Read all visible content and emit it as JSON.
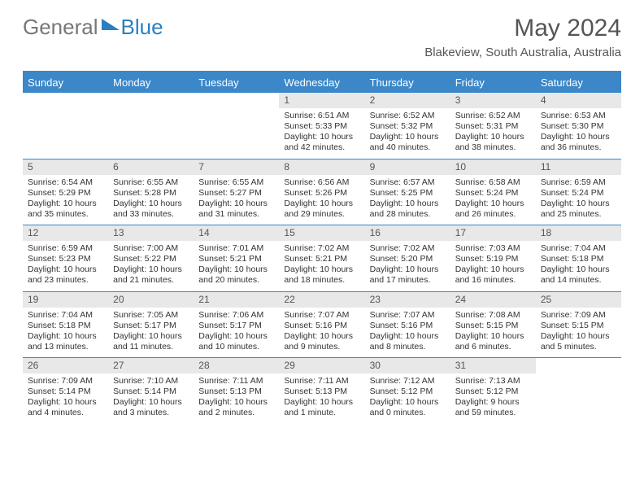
{
  "logo": {
    "word1": "General",
    "word2": "Blue"
  },
  "title": {
    "month": "May 2024",
    "location": "Blakeview, South Australia, Australia"
  },
  "colors": {
    "header_bg": "#3b87c8",
    "header_text": "#ffffff",
    "daynum_bg": "#e8e8e8",
    "body_text": "#333333",
    "title_text": "#555555"
  },
  "day_names": [
    "Sunday",
    "Monday",
    "Tuesday",
    "Wednesday",
    "Thursday",
    "Friday",
    "Saturday"
  ],
  "weeks": [
    [
      {
        "n": "",
        "sr": "",
        "ss": "",
        "dl": ""
      },
      {
        "n": "",
        "sr": "",
        "ss": "",
        "dl": ""
      },
      {
        "n": "",
        "sr": "",
        "ss": "",
        "dl": ""
      },
      {
        "n": "1",
        "sr": "Sunrise: 6:51 AM",
        "ss": "Sunset: 5:33 PM",
        "dl": "Daylight: 10 hours and 42 minutes."
      },
      {
        "n": "2",
        "sr": "Sunrise: 6:52 AM",
        "ss": "Sunset: 5:32 PM",
        "dl": "Daylight: 10 hours and 40 minutes."
      },
      {
        "n": "3",
        "sr": "Sunrise: 6:52 AM",
        "ss": "Sunset: 5:31 PM",
        "dl": "Daylight: 10 hours and 38 minutes."
      },
      {
        "n": "4",
        "sr": "Sunrise: 6:53 AM",
        "ss": "Sunset: 5:30 PM",
        "dl": "Daylight: 10 hours and 36 minutes."
      }
    ],
    [
      {
        "n": "5",
        "sr": "Sunrise: 6:54 AM",
        "ss": "Sunset: 5:29 PM",
        "dl": "Daylight: 10 hours and 35 minutes."
      },
      {
        "n": "6",
        "sr": "Sunrise: 6:55 AM",
        "ss": "Sunset: 5:28 PM",
        "dl": "Daylight: 10 hours and 33 minutes."
      },
      {
        "n": "7",
        "sr": "Sunrise: 6:55 AM",
        "ss": "Sunset: 5:27 PM",
        "dl": "Daylight: 10 hours and 31 minutes."
      },
      {
        "n": "8",
        "sr": "Sunrise: 6:56 AM",
        "ss": "Sunset: 5:26 PM",
        "dl": "Daylight: 10 hours and 29 minutes."
      },
      {
        "n": "9",
        "sr": "Sunrise: 6:57 AM",
        "ss": "Sunset: 5:25 PM",
        "dl": "Daylight: 10 hours and 28 minutes."
      },
      {
        "n": "10",
        "sr": "Sunrise: 6:58 AM",
        "ss": "Sunset: 5:24 PM",
        "dl": "Daylight: 10 hours and 26 minutes."
      },
      {
        "n": "11",
        "sr": "Sunrise: 6:59 AM",
        "ss": "Sunset: 5:24 PM",
        "dl": "Daylight: 10 hours and 25 minutes."
      }
    ],
    [
      {
        "n": "12",
        "sr": "Sunrise: 6:59 AM",
        "ss": "Sunset: 5:23 PM",
        "dl": "Daylight: 10 hours and 23 minutes."
      },
      {
        "n": "13",
        "sr": "Sunrise: 7:00 AM",
        "ss": "Sunset: 5:22 PM",
        "dl": "Daylight: 10 hours and 21 minutes."
      },
      {
        "n": "14",
        "sr": "Sunrise: 7:01 AM",
        "ss": "Sunset: 5:21 PM",
        "dl": "Daylight: 10 hours and 20 minutes."
      },
      {
        "n": "15",
        "sr": "Sunrise: 7:02 AM",
        "ss": "Sunset: 5:21 PM",
        "dl": "Daylight: 10 hours and 18 minutes."
      },
      {
        "n": "16",
        "sr": "Sunrise: 7:02 AM",
        "ss": "Sunset: 5:20 PM",
        "dl": "Daylight: 10 hours and 17 minutes."
      },
      {
        "n": "17",
        "sr": "Sunrise: 7:03 AM",
        "ss": "Sunset: 5:19 PM",
        "dl": "Daylight: 10 hours and 16 minutes."
      },
      {
        "n": "18",
        "sr": "Sunrise: 7:04 AM",
        "ss": "Sunset: 5:18 PM",
        "dl": "Daylight: 10 hours and 14 minutes."
      }
    ],
    [
      {
        "n": "19",
        "sr": "Sunrise: 7:04 AM",
        "ss": "Sunset: 5:18 PM",
        "dl": "Daylight: 10 hours and 13 minutes."
      },
      {
        "n": "20",
        "sr": "Sunrise: 7:05 AM",
        "ss": "Sunset: 5:17 PM",
        "dl": "Daylight: 10 hours and 11 minutes."
      },
      {
        "n": "21",
        "sr": "Sunrise: 7:06 AM",
        "ss": "Sunset: 5:17 PM",
        "dl": "Daylight: 10 hours and 10 minutes."
      },
      {
        "n": "22",
        "sr": "Sunrise: 7:07 AM",
        "ss": "Sunset: 5:16 PM",
        "dl": "Daylight: 10 hours and 9 minutes."
      },
      {
        "n": "23",
        "sr": "Sunrise: 7:07 AM",
        "ss": "Sunset: 5:16 PM",
        "dl": "Daylight: 10 hours and 8 minutes."
      },
      {
        "n": "24",
        "sr": "Sunrise: 7:08 AM",
        "ss": "Sunset: 5:15 PM",
        "dl": "Daylight: 10 hours and 6 minutes."
      },
      {
        "n": "25",
        "sr": "Sunrise: 7:09 AM",
        "ss": "Sunset: 5:15 PM",
        "dl": "Daylight: 10 hours and 5 minutes."
      }
    ],
    [
      {
        "n": "26",
        "sr": "Sunrise: 7:09 AM",
        "ss": "Sunset: 5:14 PM",
        "dl": "Daylight: 10 hours and 4 minutes."
      },
      {
        "n": "27",
        "sr": "Sunrise: 7:10 AM",
        "ss": "Sunset: 5:14 PM",
        "dl": "Daylight: 10 hours and 3 minutes."
      },
      {
        "n": "28",
        "sr": "Sunrise: 7:11 AM",
        "ss": "Sunset: 5:13 PM",
        "dl": "Daylight: 10 hours and 2 minutes."
      },
      {
        "n": "29",
        "sr": "Sunrise: 7:11 AM",
        "ss": "Sunset: 5:13 PM",
        "dl": "Daylight: 10 hours and 1 minute."
      },
      {
        "n": "30",
        "sr": "Sunrise: 7:12 AM",
        "ss": "Sunset: 5:12 PM",
        "dl": "Daylight: 10 hours and 0 minutes."
      },
      {
        "n": "31",
        "sr": "Sunrise: 7:13 AM",
        "ss": "Sunset: 5:12 PM",
        "dl": "Daylight: 9 hours and 59 minutes."
      },
      {
        "n": "",
        "sr": "",
        "ss": "",
        "dl": ""
      }
    ]
  ]
}
